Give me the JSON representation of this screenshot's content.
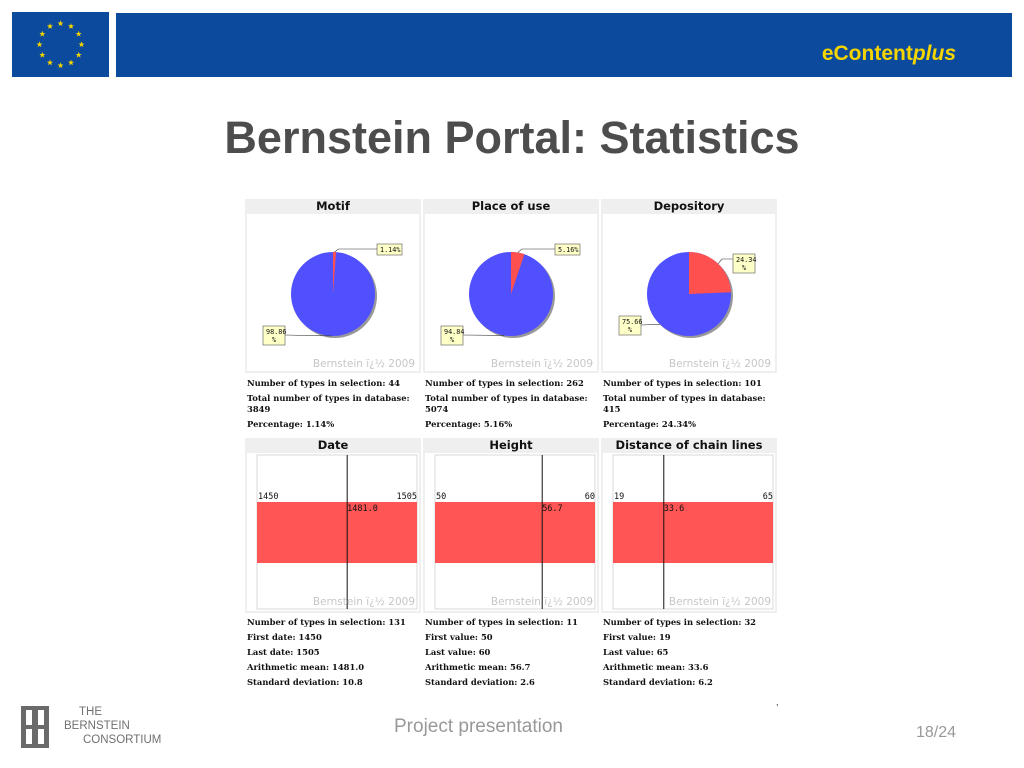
{
  "brand": {
    "econtent_prefix": "eContent",
    "econtent_suffix": "plus"
  },
  "colors": {
    "band": "#0b4a9c",
    "flag_star": "#f5d400",
    "pie_main": "#5050ff",
    "pie_slice": "#ff5050",
    "bar": "#ff5555"
  },
  "slide": {
    "title": "Bernstein Portal: Statistics"
  },
  "watermark": "Bernstein ï¿½ 2009",
  "chart_data": [
    {
      "type": "pie",
      "title": "Motif",
      "slices": [
        {
          "value": 98.86,
          "label": "98.86 %"
        },
        {
          "value": 1.14,
          "label": "1.14%"
        }
      ],
      "stats": [
        "Number of types in selection: 44",
        "Total number of types in database: 3849",
        "Percentage: 1.14%"
      ]
    },
    {
      "type": "pie",
      "title": "Place of use",
      "slices": [
        {
          "value": 94.84,
          "label": "94.84 %"
        },
        {
          "value": 5.16,
          "label": "5.16%"
        }
      ],
      "stats": [
        "Number of types in selection: 262",
        "Total number of types in database: 5074",
        "Percentage: 5.16%"
      ]
    },
    {
      "type": "pie",
      "title": "Depository",
      "slices": [
        {
          "value": 75.66,
          "label": "75.66 %"
        },
        {
          "value": 24.34,
          "label": "24.34 %"
        }
      ],
      "stats": [
        "Number of types in selection: 101",
        "Total number of types in database: 415",
        "Percentage: 24.34%"
      ]
    },
    {
      "type": "bar",
      "title": "Date",
      "min_label": "1450",
      "max_label": "1505",
      "mean_label": "1481.0",
      "min": 1450,
      "max": 1505,
      "mean": 1481.0,
      "stats": [
        "Number of types in selection: 131",
        "First date: 1450",
        "Last date: 1505",
        "Arithmetic mean: 1481.0",
        "Standard deviation: 10.8"
      ]
    },
    {
      "type": "bar",
      "title": "Height",
      "min_label": "50",
      "max_label": "60",
      "mean_label": "56.7",
      "min": 50,
      "max": 60,
      "mean": 56.7,
      "stats": [
        "Number of types in selection: 11",
        "First value: 50",
        "Last value: 60",
        "Arithmetic mean: 56.7",
        "Standard deviation: 2.6"
      ]
    },
    {
      "type": "bar",
      "title": "Distance of chain lines",
      "min_label": "19",
      "max_label": "65",
      "mean_label": "33.6",
      "min": 19,
      "max": 65,
      "mean": 33.6,
      "stats": [
        "Number of types in selection: 32",
        "First value: 19",
        "Last value: 65",
        "Arithmetic mean: 33.6",
        "Standard deviation: 6.2"
      ]
    }
  ],
  "footer": {
    "consortium_lines": [
      "THE",
      "BERNSTEIN",
      "CONSORTIUM"
    ],
    "center": "Project presentation",
    "page": "18/24",
    "stray_mark": ","
  }
}
